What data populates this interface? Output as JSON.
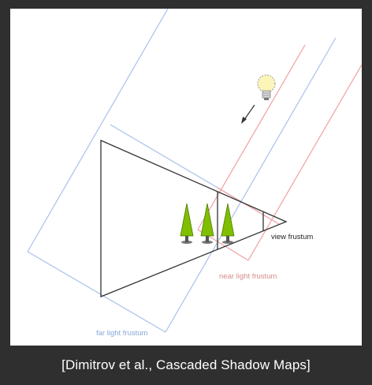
{
  "labels": {
    "view_frustum": "view frustum",
    "near_light_frustum": "near light frustum",
    "far_light_frustum": "far light frustum"
  },
  "caption": "[Dimitrov et al., Cascaded Shadow Maps]",
  "colors": {
    "background": "#2f2f2f",
    "canvas": "#ffffff",
    "view_frustum": "#333333",
    "near_light_frustum": "#f0a0a0",
    "far_light_frustum": "#a9c0ea",
    "near_label": "#d98a8a",
    "far_label": "#8aa6d8",
    "tree_foliage": "#7fbf00",
    "tree_trunk": "#555555",
    "bulb": "#fbf6b8"
  },
  "icons": [
    "light-bulb-icon",
    "light-direction-arrow",
    "tree-icon"
  ]
}
